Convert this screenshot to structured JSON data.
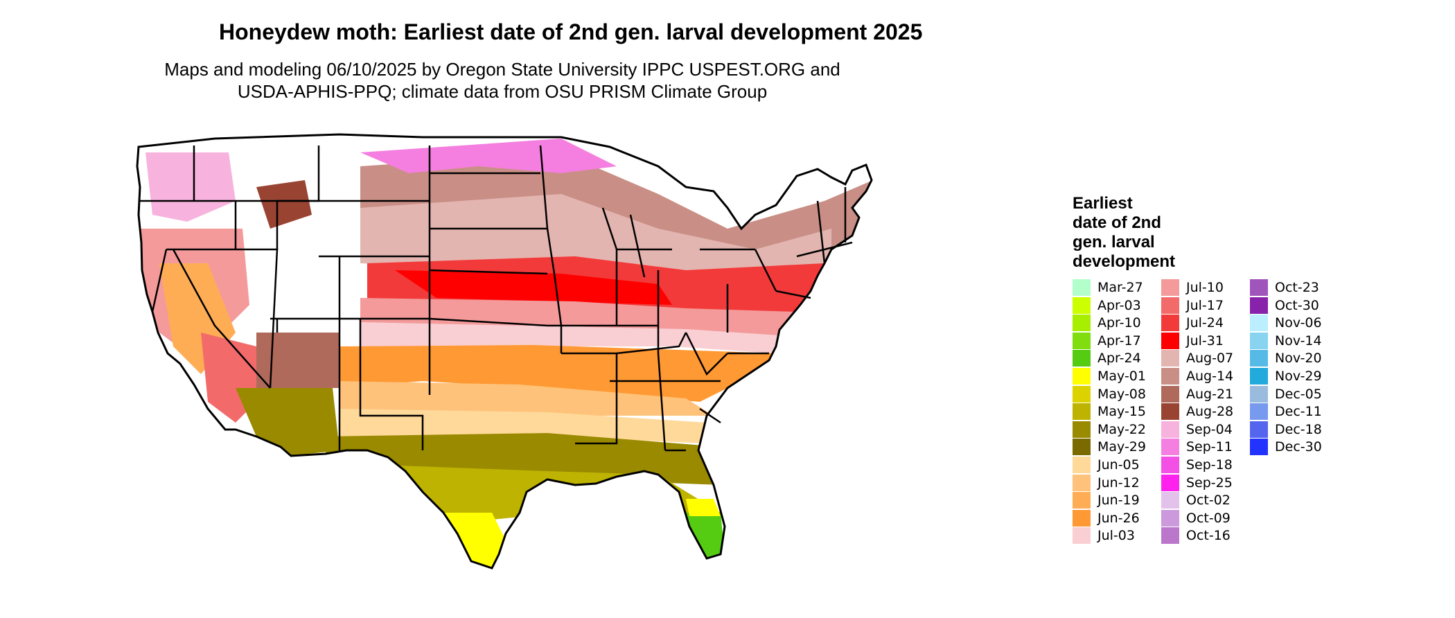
{
  "title": "Honeydew moth: Earliest date of 2nd gen. larval development 2025",
  "subtitle_line1": "Maps and modeling 06/10/2025 by Oregon State University IPPC USPEST.ORG and",
  "subtitle_line2": "USDA-APHIS-PPQ; climate data from OSU PRISM Climate Group",
  "legend": {
    "title_lines": [
      "Earliest",
      "date of 2nd",
      "gen. larval",
      "development"
    ],
    "columns": [
      [
        {
          "label": "Mar-27",
          "color": "#b3ffcc"
        },
        {
          "label": "Apr-03",
          "color": "#ccff00"
        },
        {
          "label": "Apr-10",
          "color": "#a8ee00"
        },
        {
          "label": "Apr-17",
          "color": "#7fdd10"
        },
        {
          "label": "Apr-24",
          "color": "#55cc11"
        },
        {
          "label": "May-01",
          "color": "#ffff00"
        },
        {
          "label": "May-08",
          "color": "#dcd200"
        },
        {
          "label": "May-15",
          "color": "#bdb300"
        },
        {
          "label": "May-22",
          "color": "#9a8a00"
        },
        {
          "label": "May-29",
          "color": "#7a6a00"
        },
        {
          "label": "Jun-05",
          "color": "#ffd99a"
        },
        {
          "label": "Jun-12",
          "color": "#ffc27a"
        },
        {
          "label": "Jun-19",
          "color": "#ffad55"
        },
        {
          "label": "Jun-26",
          "color": "#ff9933"
        },
        {
          "label": "Jul-03",
          "color": "#f9cfd3"
        }
      ],
      [
        {
          "label": "Jul-10",
          "color": "#f49a9a"
        },
        {
          "label": "Jul-17",
          "color": "#f26a6a"
        },
        {
          "label": "Jul-24",
          "color": "#f23a3a"
        },
        {
          "label": "Jul-31",
          "color": "#ff0000"
        },
        {
          "label": "Aug-07",
          "color": "#e3b5b0"
        },
        {
          "label": "Aug-14",
          "color": "#c98f86"
        },
        {
          "label": "Aug-21",
          "color": "#b06a5c"
        },
        {
          "label": "Aug-28",
          "color": "#994433"
        },
        {
          "label": "Sep-04",
          "color": "#f7b3dd"
        },
        {
          "label": "Sep-11",
          "color": "#f57fe0"
        },
        {
          "label": "Sep-18",
          "color": "#f450e6"
        },
        {
          "label": "Sep-25",
          "color": "#ff22ee"
        },
        {
          "label": "Oct-02",
          "color": "#e2c2ea"
        },
        {
          "label": "Oct-09",
          "color": "#cc99dd"
        },
        {
          "label": "Oct-16",
          "color": "#bb77cc"
        }
      ],
      [
        {
          "label": "Oct-23",
          "color": "#a055bb"
        },
        {
          "label": "Oct-30",
          "color": "#8822aa"
        },
        {
          "label": "Nov-06",
          "color": "#bbeeff"
        },
        {
          "label": "Nov-14",
          "color": "#88d4f0"
        },
        {
          "label": "Nov-20",
          "color": "#55bbe6"
        },
        {
          "label": "Nov-29",
          "color": "#22aadd"
        },
        {
          "label": "Dec-05",
          "color": "#99bbdd"
        },
        {
          "label": "Dec-11",
          "color": "#7799ee"
        },
        {
          "label": "Dec-18",
          "color": "#5566ee"
        },
        {
          "label": "Dec-30",
          "color": "#2233ff"
        }
      ]
    ]
  },
  "colors": {
    "background": "#ffffff",
    "border": "#000000"
  }
}
